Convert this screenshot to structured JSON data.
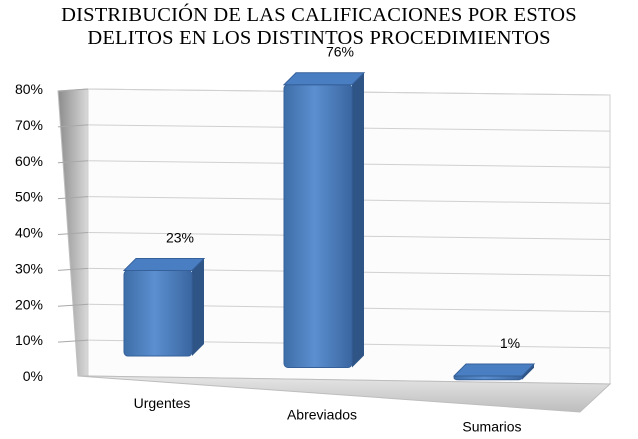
{
  "chart_data": {
    "type": "bar",
    "title_line1": "DISTRIBUCIÓN DE LAS CALIFICACIONES POR ESTOS",
    "title_line2": "DELITOS EN LOS DISTINTOS PROCEDIMIENTOS",
    "categories": [
      "Urgentes",
      "Abreviados",
      "Sumarios"
    ],
    "values": [
      23,
      76,
      1
    ],
    "data_labels": [
      "23%",
      "76%",
      "1%"
    ],
    "yticks": [
      "0%",
      "10%",
      "20%",
      "30%",
      "40%",
      "50%",
      "60%",
      "70%",
      "80%"
    ],
    "ylim": [
      0,
      80
    ],
    "grid": true,
    "style": "3d-column",
    "bar_color": "#4F81BD"
  }
}
